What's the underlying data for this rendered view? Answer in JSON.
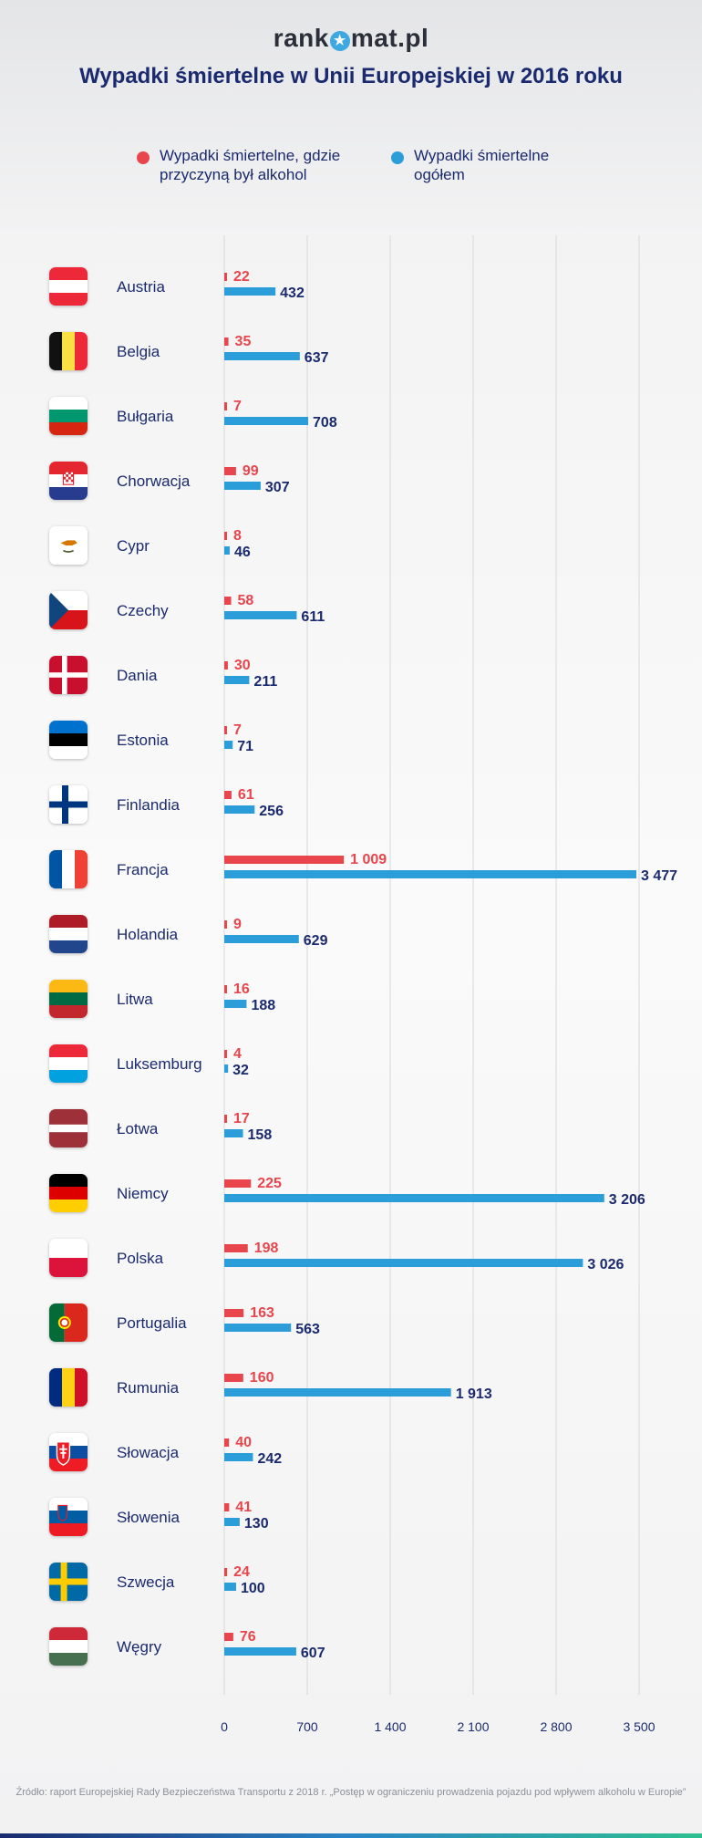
{
  "brand": {
    "before": "rank",
    "icon": "star-icon",
    "after": "mat.pl",
    "accent": "#3da9e0"
  },
  "title": "Wypadki śmiertelne w Unii Europejskiej w 2016 roku",
  "legend": [
    {
      "label": "Wypadki śmiertelne, gdzie przyczyną był alkohol",
      "color": "#e8454c"
    },
    {
      "label": "Wypadki śmiertelne ogółem",
      "color": "#2b9ed9"
    }
  ],
  "source": "Źródło: raport Europejskiej Rady Bezpieczeństwa Transportu z 2018 r. „Postęp w ograniczeniu prowadzenia pojazdu pod wpływem alkoholu w Europie”",
  "colors": {
    "alcohol_value": "#e8454c",
    "total_value": "#1b2a6e",
    "grid": "#d7d8db"
  },
  "chart_data": {
    "type": "bar",
    "orientation": "horizontal",
    "categories": [
      "Austria",
      "Belgia",
      "Bułgaria",
      "Chorwacja",
      "Cypr",
      "Czechy",
      "Dania",
      "Estonia",
      "Finlandia",
      "Francja",
      "Holandia",
      "Litwa",
      "Luksemburg",
      "Łotwa",
      "Niemcy",
      "Polska",
      "Portugalia",
      "Rumunia",
      "Słowacja",
      "Słowenia",
      "Szwecja",
      "Węgry"
    ],
    "series": [
      {
        "name": "Wypadki śmiertelne, gdzie przyczyną był alkohol",
        "color": "#e8454c",
        "values": [
          22,
          35,
          7,
          99,
          8,
          58,
          30,
          7,
          61,
          1009,
          9,
          16,
          4,
          17,
          225,
          198,
          163,
          160,
          40,
          41,
          24,
          76
        ],
        "labels": [
          "22",
          "35",
          "7",
          "99",
          "8",
          "58",
          "30",
          "7",
          "61",
          "1 009",
          "9",
          "16",
          "4",
          "17",
          "225",
          "198",
          "163",
          "160",
          "40",
          "41",
          "24",
          "76"
        ]
      },
      {
        "name": "Wypadki śmiertelne ogółem",
        "color": "#2b9ed9",
        "values": [
          432,
          637,
          708,
          307,
          46,
          611,
          211,
          71,
          256,
          3477,
          629,
          188,
          32,
          158,
          3206,
          3026,
          563,
          1913,
          242,
          130,
          100,
          607
        ],
        "labels": [
          "432",
          "637",
          "708",
          "307",
          "46",
          "611",
          "211",
          "71",
          "256",
          "3 477",
          "629",
          "188",
          "32",
          "158",
          "3 206",
          "3 026",
          "563",
          "1 913",
          "242",
          "130",
          "100",
          "607"
        ]
      }
    ],
    "xlim": [
      0,
      3500
    ],
    "ticks": [
      0,
      700,
      1400,
      2100,
      2800,
      3500
    ],
    "tick_labels": [
      "0",
      "700",
      "1 400",
      "2 100",
      "2 800",
      "3 500"
    ],
    "grid": true,
    "legend_position": "top"
  }
}
